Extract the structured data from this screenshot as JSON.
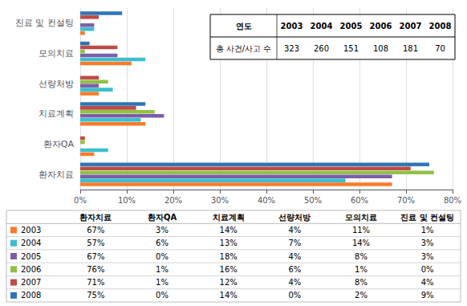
{
  "chart_data": {
    "type": "bar",
    "orientation": "horizontal",
    "categories": [
      "환자치료",
      "환자QA",
      "치료계획",
      "선량처방",
      "모의치료",
      "진료 및 컨설팅"
    ],
    "series": [
      {
        "name": "2003",
        "color": "#F97B2A",
        "values": [
          67,
          3,
          14,
          4,
          11,
          1
        ],
        "value_labels": [
          "67%",
          "3%",
          "14%",
          "4%",
          "11%",
          "1%"
        ]
      },
      {
        "name": "2004",
        "color": "#3BBFCF",
        "values": [
          57,
          6,
          13,
          7,
          14,
          3
        ],
        "value_labels": [
          "57%",
          "6%",
          "13%",
          "7%",
          "14%",
          "3%"
        ]
      },
      {
        "name": "2005",
        "color": "#7B5EA7",
        "values": [
          67,
          0,
          18,
          4,
          8,
          3
        ],
        "value_labels": [
          "67%",
          "0%",
          "18%",
          "4%",
          "8%",
          "3%"
        ]
      },
      {
        "name": "2006",
        "color": "#92C045",
        "values": [
          76,
          1,
          16,
          6,
          1,
          0
        ],
        "value_labels": [
          "76%",
          "1%",
          "16%",
          "6%",
          "1%",
          "0%"
        ]
      },
      {
        "name": "2007",
        "color": "#BE4B48",
        "values": [
          71,
          1,
          12,
          4,
          8,
          4
        ],
        "value_labels": [
          "71%",
          "1%",
          "12%",
          "4%",
          "8%",
          "4%"
        ]
      },
      {
        "name": "2008",
        "color": "#2E75B6",
        "values": [
          75,
          0,
          14,
          0,
          2,
          9
        ],
        "value_labels": [
          "75%",
          "0%",
          "14%",
          "0%",
          "2%",
          "9%"
        ]
      }
    ],
    "xlim": [
      0,
      80
    ],
    "xticks": [
      {
        "value": 0,
        "label": "0%"
      },
      {
        "value": 10,
        "label": "10%"
      },
      {
        "value": 20,
        "label": "20%"
      },
      {
        "value": 30,
        "label": "30%"
      },
      {
        "value": 40,
        "label": "40%"
      },
      {
        "value": 50,
        "label": "50%"
      },
      {
        "value": 60,
        "label": "60%"
      },
      {
        "value": 70,
        "label": "70%"
      },
      {
        "value": 80,
        "label": "80%"
      }
    ],
    "grid": true,
    "inset_table": {
      "headers": [
        "연도",
        "2003",
        "2004",
        "2005",
        "2006",
        "2007",
        "2008"
      ],
      "row_label": "총 사건/사고 수",
      "values": [
        323,
        260,
        151,
        108,
        181,
        70
      ]
    }
  }
}
